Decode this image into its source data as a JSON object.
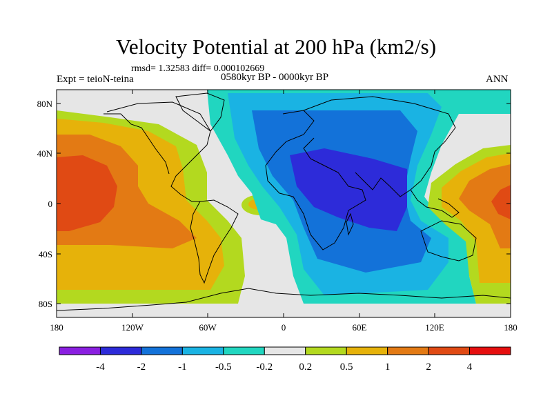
{
  "title": "Velocity Potential at 200 hPa (km2/s)",
  "stats": "rmsd= 1.32583 diff= 0.000102669",
  "experiment": "Expt = teioN-teina",
  "periods": "0580kyr BP - 0000kyr BP",
  "season": "ANN",
  "lat_ticks": [
    "80N",
    "40N",
    "0",
    "40S",
    "80S"
  ],
  "lon_ticks": [
    "180",
    "120W",
    "60W",
    "0",
    "60E",
    "120E",
    "180"
  ],
  "colorbar": {
    "colors": [
      "#8a1fe0",
      "#2d2bd9",
      "#1372d9",
      "#1ab3e3",
      "#21d6c0",
      "#e6e6e6",
      "#b3d91f",
      "#e6b20a",
      "#e37a14",
      "#e04a14",
      "#e60f0f"
    ],
    "labels": [
      "-4",
      "-2",
      "-1",
      "-0.5",
      "-0.2",
      "0.2",
      "0.5",
      "1",
      "2",
      "4"
    ]
  }
}
